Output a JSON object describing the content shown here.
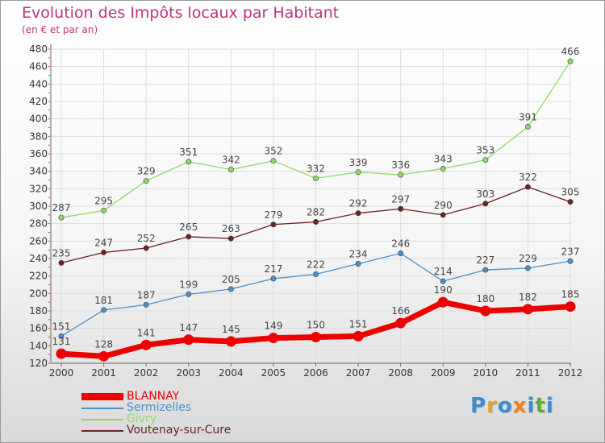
{
  "title": "Evolution des Impôts locaux par Habitant",
  "subtitle": "(en € et par an)",
  "logo": {
    "text": "Proxiti",
    "letters": [
      "P",
      "r",
      "o",
      "x",
      "i",
      "t",
      "i"
    ],
    "colors": [
      "#3a8fd0",
      "#e8a020",
      "#3a8fd0",
      "#f08020",
      "#3a8fd0",
      "#60b030",
      "#3a8fd0"
    ]
  },
  "chart_data": {
    "type": "line",
    "title": "Evolution des Impôts locaux par Habitant",
    "subtitle": "(en € et par an)",
    "x": [
      "2000",
      "2001",
      "2002",
      "2003",
      "2004",
      "2005",
      "2006",
      "2007",
      "2008",
      "2009",
      "2010",
      "2011",
      "2012"
    ],
    "ylim": [
      120,
      480
    ],
    "yticks": [
      "120",
      "140",
      "160",
      "180",
      "200",
      "220",
      "240",
      "260",
      "280",
      "300",
      "320",
      "340",
      "360",
      "380",
      "400",
      "420",
      "440",
      "460",
      "480"
    ],
    "grid": true,
    "legend_position": "bottom-left",
    "series": [
      {
        "name": "BLANNAY",
        "color": "#ee0000",
        "bold": true,
        "values": [
          131,
          128,
          141,
          147,
          145,
          149,
          150,
          151,
          166,
          190,
          180,
          182,
          185
        ]
      },
      {
        "name": "Sermizelles",
        "color": "#4d90c8",
        "bold": false,
        "values": [
          151,
          181,
          187,
          199,
          205,
          217,
          222,
          234,
          246,
          214,
          227,
          229,
          237
        ]
      },
      {
        "name": "Givry",
        "color": "#8ed966",
        "bold": false,
        "values": [
          287,
          295,
          329,
          351,
          342,
          352,
          332,
          339,
          336,
          343,
          353,
          391,
          466
        ]
      },
      {
        "name": "Voutenay-sur-Cure",
        "color": "#6b2323",
        "bold": false,
        "values": [
          235,
          247,
          252,
          265,
          263,
          279,
          282,
          292,
          297,
          290,
          303,
          322,
          305
        ]
      }
    ]
  }
}
